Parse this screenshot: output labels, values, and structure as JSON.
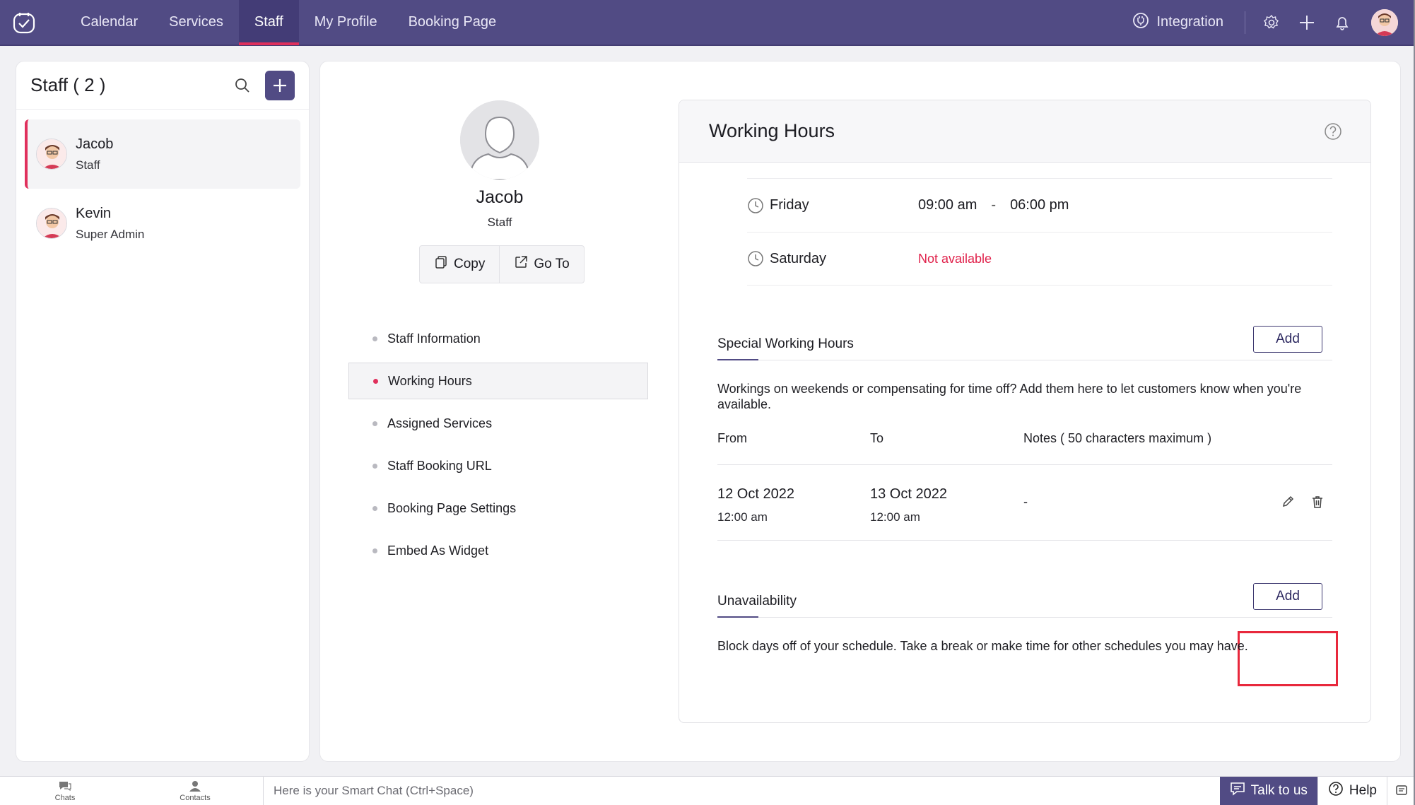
{
  "nav": {
    "items": [
      "Calendar",
      "Services",
      "Staff",
      "My Profile",
      "Booking Page"
    ],
    "active_index": 2,
    "integration_label": "Integration"
  },
  "staff_panel": {
    "title": "Staff ( 2 )",
    "members": [
      {
        "name": "Jacob",
        "role": "Staff",
        "selected": true
      },
      {
        "name": "Kevin",
        "role": "Super Admin",
        "selected": false
      }
    ]
  },
  "profile": {
    "name": "Jacob",
    "role": "Staff",
    "copy_label": "Copy",
    "goto_label": "Go To"
  },
  "menu": {
    "items": [
      "Staff Information",
      "Working Hours",
      "Assigned Services",
      "Staff Booking URL",
      "Booking Page Settings",
      "Embed As Widget"
    ],
    "active_index": 1
  },
  "working_hours": {
    "title": "Working Hours",
    "days": [
      {
        "day": "Friday",
        "start": "09:00 am",
        "sep": "-",
        "end": "06:00 pm"
      },
      {
        "day": "Saturday",
        "status": "Not available"
      }
    ],
    "special": {
      "title": "Special Working Hours",
      "add_label": "Add",
      "description": "Workings on weekends or compensating for time off? Add them here to let customers know when you're available.",
      "columns": [
        "From",
        "To",
        "Notes ( 50 characters maximum )"
      ],
      "rows": [
        {
          "from_date": "12 Oct 2022",
          "from_time": "12:00 am",
          "to_date": "13 Oct 2022",
          "to_time": "12:00 am",
          "notes": "-"
        }
      ]
    },
    "unavailability": {
      "title": "Unavailability",
      "add_label": "Add",
      "description": "Block days off of your schedule. Take a break or make time for other schedules you may have."
    }
  },
  "bottom_bar": {
    "chats_label": "Chats",
    "contacts_label": "Contacts",
    "smart_chat_placeholder": "Here is your Smart Chat (Ctrl+Space)",
    "talk_label": "Talk to us",
    "help_label": "Help"
  },
  "colors": {
    "nav_bg": "#514b84",
    "accent_red": "#e0305c",
    "not_available": "#e0204a"
  }
}
